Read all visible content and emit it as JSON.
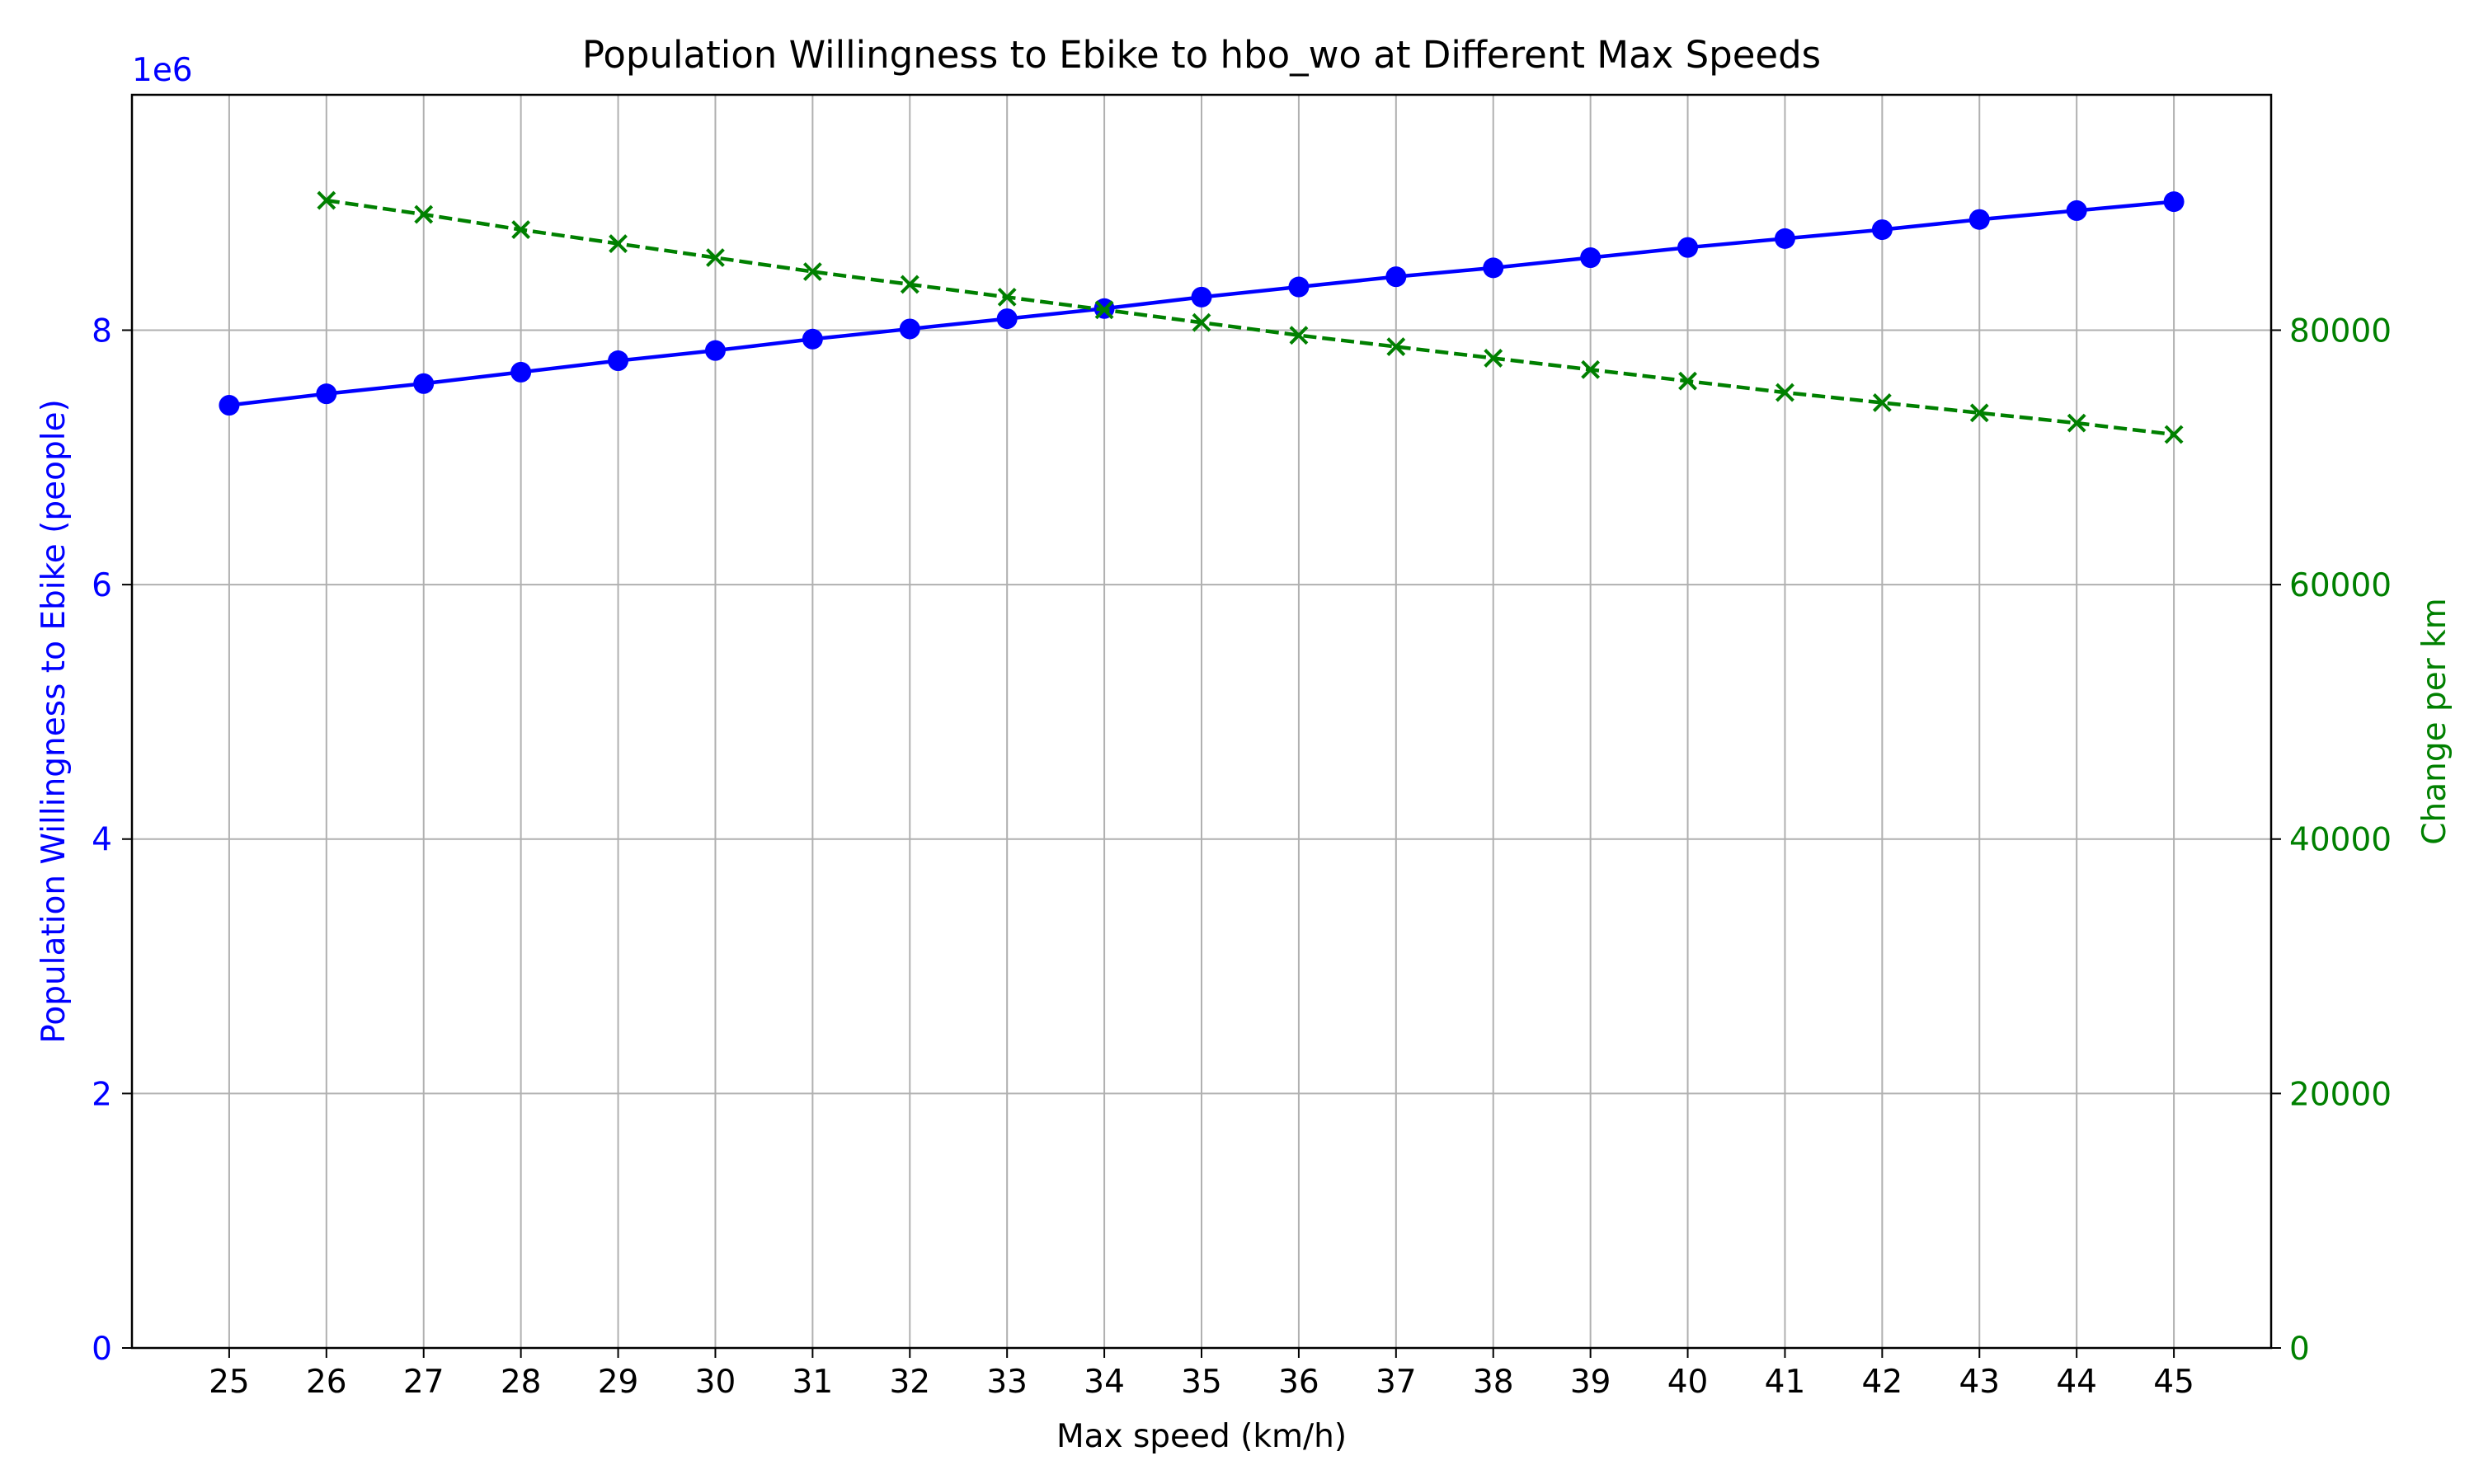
{
  "chart_data": {
    "type": "line",
    "title": "Population Willingness to Ebike to hbo_wo at Different Max Speeds",
    "xlabel": "Max speed (km/h)",
    "ylabel_left": "Population Willingness to Ebike (people)",
    "ylabel_right": "Change per km",
    "y_left_offset_label": "1e6",
    "x": [
      25,
      26,
      27,
      28,
      29,
      30,
      31,
      32,
      33,
      34,
      35,
      36,
      37,
      38,
      39,
      40,
      41,
      42,
      43,
      44,
      45
    ],
    "xlim": [
      24,
      46
    ],
    "ylim_left": [
      0,
      9.85
    ],
    "ylim_right": [
      0,
      98500
    ],
    "y_left_ticks": [
      0,
      2,
      4,
      6,
      8
    ],
    "y_right_ticks": [
      0,
      20000,
      40000,
      60000,
      80000
    ],
    "grid": true,
    "series": [
      {
        "axis": "left",
        "color": "#0000ff",
        "marker": "circle",
        "linestyle": "solid",
        "values": [
          7.41,
          7.5,
          7.58,
          7.67,
          7.76,
          7.84,
          7.93,
          8.01,
          8.09,
          8.17,
          8.26,
          8.34,
          8.42,
          8.49,
          8.57,
          8.65,
          8.72,
          8.79,
          8.87,
          8.94,
          9.01
        ]
      },
      {
        "axis": "right",
        "color": "#008000",
        "marker": "x",
        "linestyle": "dashed",
        "x": [
          26,
          27,
          28,
          29,
          30,
          31,
          32,
          33,
          34,
          35,
          36,
          37,
          38,
          39,
          40,
          41,
          42,
          43,
          44,
          45
        ],
        "values": [
          90200,
          89100,
          87900,
          86800,
          85700,
          84600,
          83600,
          82600,
          81600,
          80600,
          79600,
          78700,
          77800,
          76900,
          76000,
          75100,
          74300,
          73500,
          72700,
          71800
        ]
      }
    ]
  }
}
